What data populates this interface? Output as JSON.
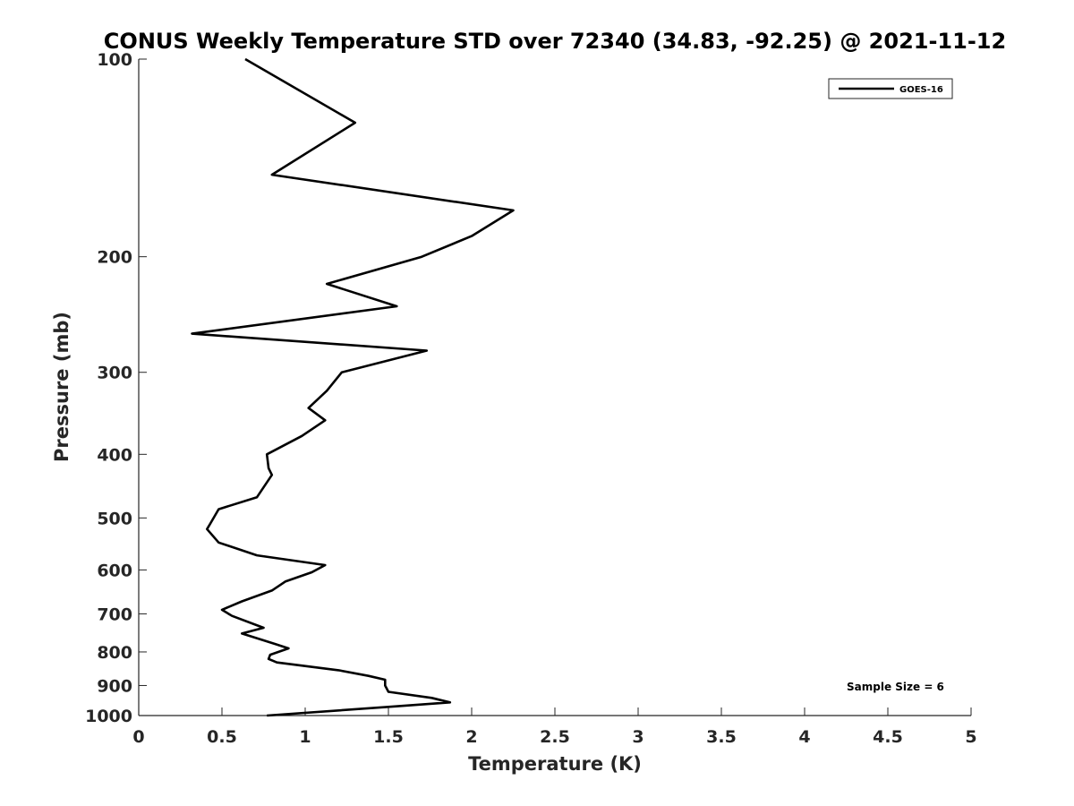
{
  "chart_data": {
    "type": "line",
    "title": "CONUS Weekly Temperature STD over 72340 (34.83, -92.25) @ 2021-11-12",
    "xlabel": "Temperature (K)",
    "ylabel": "Pressure (mb)",
    "xlim": [
      0,
      5
    ],
    "ylim": [
      100,
      1000
    ],
    "y_scale": "log",
    "y_reversed": true,
    "x_ticks": [
      "0",
      "0.5",
      "1",
      "1.5",
      "2",
      "2.5",
      "3",
      "3.5",
      "4",
      "4.5",
      "5"
    ],
    "y_ticks": [
      "100",
      "200",
      "300",
      "400",
      "500",
      "600",
      "700",
      "800",
      "900",
      "1000"
    ],
    "grid": false,
    "legend_position": "top-right",
    "annotation": "Sample Size = 6",
    "series": [
      {
        "name": "GOES-16",
        "color": "#000000",
        "points": [
          [
            0.64,
            100
          ],
          [
            1.3,
            125
          ],
          [
            0.8,
            150
          ],
          [
            2.25,
            170
          ],
          [
            2.0,
            186
          ],
          [
            1.7,
            200
          ],
          [
            1.13,
            220
          ],
          [
            1.55,
            238
          ],
          [
            0.32,
            262
          ],
          [
            1.73,
            278
          ],
          [
            1.22,
            300
          ],
          [
            1.13,
            320
          ],
          [
            1.02,
            340
          ],
          [
            1.12,
            355
          ],
          [
            0.98,
            375
          ],
          [
            0.77,
            400
          ],
          [
            0.78,
            420
          ],
          [
            0.8,
            430
          ],
          [
            0.71,
            465
          ],
          [
            0.48,
            485
          ],
          [
            0.43,
            510
          ],
          [
            0.41,
            520
          ],
          [
            0.48,
            545
          ],
          [
            0.71,
            570
          ],
          [
            1.12,
            590
          ],
          [
            1.04,
            605
          ],
          [
            0.88,
            625
          ],
          [
            0.8,
            645
          ],
          [
            0.62,
            670
          ],
          [
            0.5,
            690
          ],
          [
            0.56,
            705
          ],
          [
            0.75,
            735
          ],
          [
            0.62,
            750
          ],
          [
            0.82,
            778
          ],
          [
            0.9,
            790
          ],
          [
            0.79,
            808
          ],
          [
            0.78,
            820
          ],
          [
            0.83,
            830
          ],
          [
            1.2,
            853
          ],
          [
            1.38,
            870
          ],
          [
            1.48,
            882
          ],
          [
            1.48,
            900
          ],
          [
            1.5,
            920
          ],
          [
            1.76,
            940
          ],
          [
            1.87,
            955
          ],
          [
            1.5,
            970
          ],
          [
            0.77,
            1000
          ]
        ]
      }
    ]
  }
}
